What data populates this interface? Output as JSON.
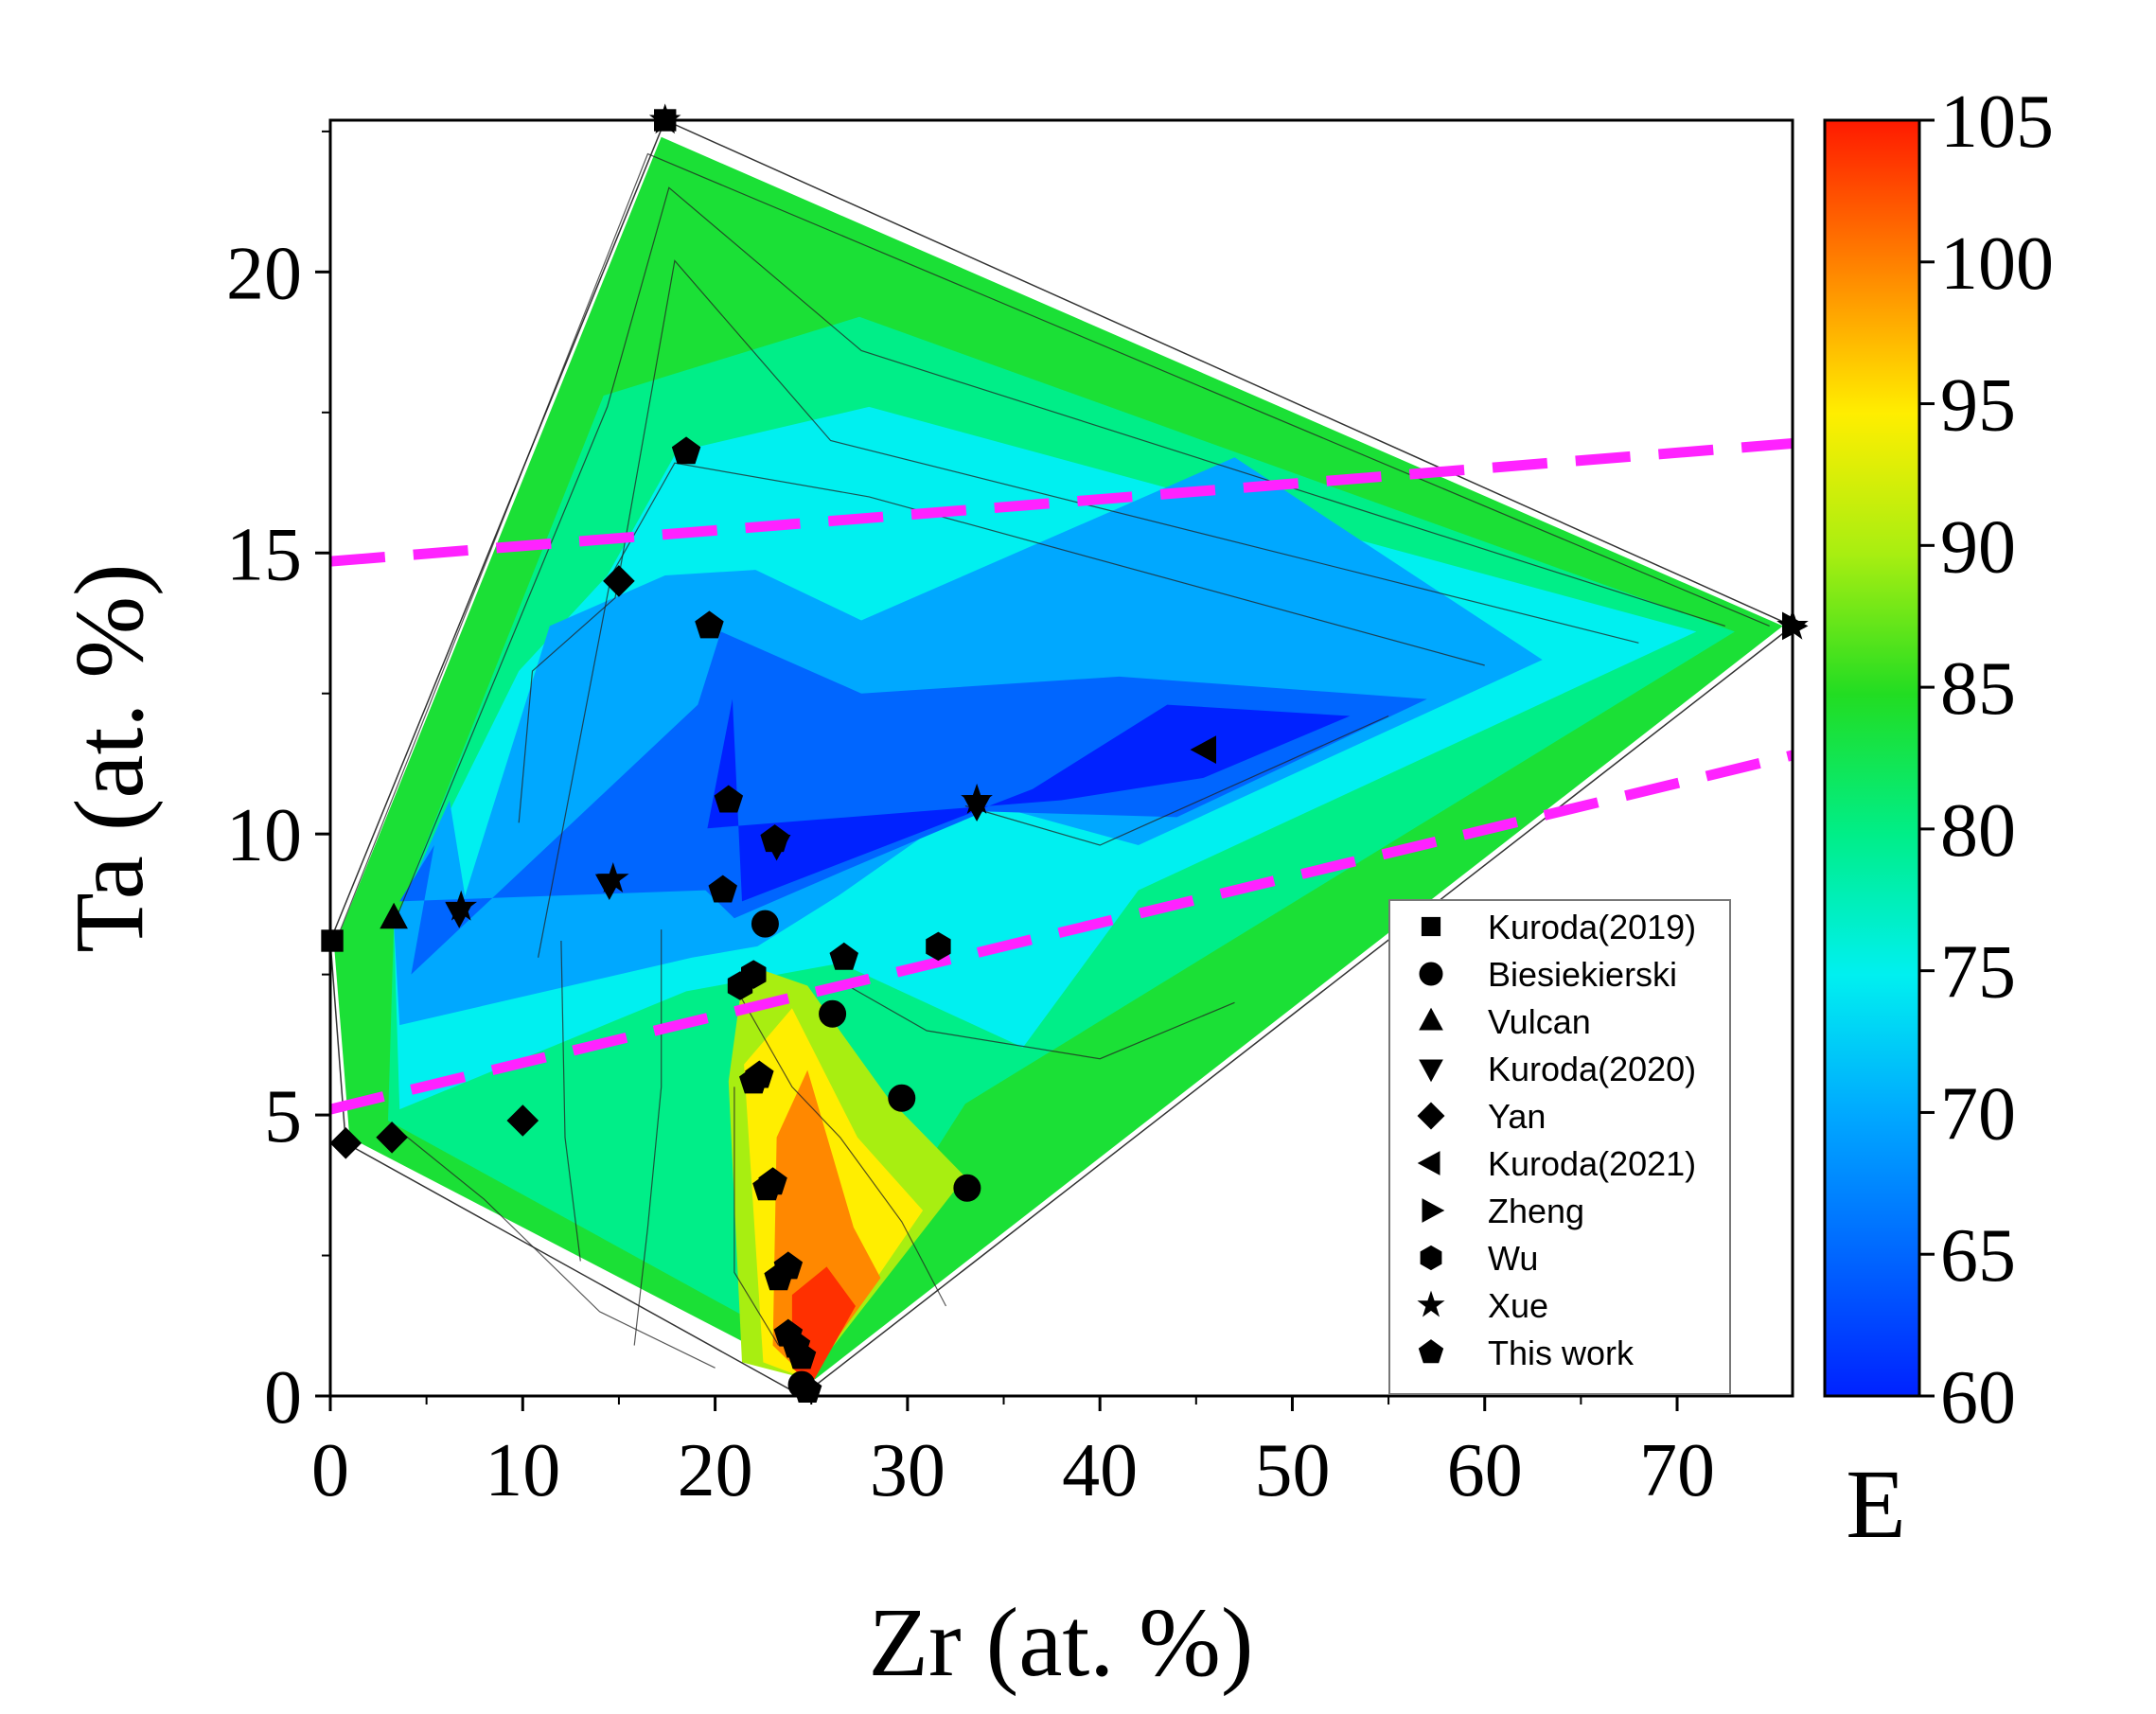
{
  "chart_data": {
    "type": "contour",
    "xlabel": "Zr (at. %)",
    "ylabel": "Ta (at. %)",
    "xlim": [
      0,
      76
    ],
    "ylim": [
      0,
      22.7
    ],
    "xticks": [
      "0",
      "10",
      "20",
      "30",
      "40",
      "50",
      "60",
      "70"
    ],
    "xtick_values": [
      0,
      10,
      20,
      30,
      40,
      50,
      60,
      70
    ],
    "yticks": [
      "0",
      "5",
      "10",
      "15",
      "20"
    ],
    "ytick_values": [
      0,
      5,
      10,
      15,
      20
    ],
    "colorbar": {
      "label": "E",
      "range": [
        60,
        105
      ],
      "ticks": [
        "60",
        "65",
        "70",
        "75",
        "80",
        "85",
        "90",
        "95",
        "100",
        "105"
      ],
      "tick_values": [
        60,
        65,
        70,
        75,
        80,
        85,
        90,
        95,
        100,
        105
      ],
      "colors": [
        "#0022ff",
        "#0066ff",
        "#00a8ff",
        "#00f0f0",
        "#00ee88",
        "#22dd22",
        "#a8ee11",
        "#ffee00",
        "#ff8800",
        "#ff1a00"
      ]
    },
    "region_hull": [
      [
        0,
        8.1
      ],
      [
        17.4,
        22.7
      ],
      [
        76,
        13.7
      ],
      [
        24.5,
        0
      ],
      [
        0.8,
        4.5
      ]
    ],
    "regions": [
      {
        "level": 84,
        "points": [
          [
            0.2,
            8.0
          ],
          [
            17.2,
            22.4
          ],
          [
            75.5,
            13.7
          ],
          [
            25.2,
            0.3
          ],
          [
            1.0,
            4.6
          ]
        ]
      },
      {
        "level": 80,
        "points": [
          [
            3.3,
            8.4
          ],
          [
            14.2,
            17.8
          ],
          [
            27.5,
            19.2
          ],
          [
            73,
            13.6
          ],
          [
            33,
            5.2
          ],
          [
            24.8,
            0.8
          ],
          [
            3.0,
            4.9
          ]
        ]
      },
      {
        "level": 75,
        "points": [
          [
            3.3,
            8.4
          ],
          [
            9.8,
            12.9
          ],
          [
            14.4,
            14.6
          ],
          [
            18.0,
            16.8
          ],
          [
            28.0,
            17.6
          ],
          [
            71,
            13.6
          ],
          [
            42,
            9.0
          ],
          [
            36,
            6.2
          ],
          [
            26.5,
            7.7
          ],
          [
            18.5,
            7.2
          ],
          [
            3.6,
            5.1
          ]
        ]
      },
      {
        "level": 70,
        "points": [
          [
            3.3,
            8.4
          ],
          [
            6.2,
            10.6
          ],
          [
            7.0,
            8.9
          ],
          [
            11.4,
            13.7
          ],
          [
            17.4,
            14.6
          ],
          [
            22.1,
            14.7
          ],
          [
            27.6,
            13.8
          ],
          [
            47.0,
            16.7
          ],
          [
            63.0,
            13.1
          ],
          [
            42.0,
            9.8
          ],
          [
            33.5,
            10.6
          ],
          [
            26.4,
            8.9
          ],
          [
            22.2,
            8.0
          ],
          [
            18.8,
            7.8
          ],
          [
            3.6,
            6.6
          ]
        ]
      },
      {
        "level": 65,
        "points": [
          [
            3.6,
            8.8
          ],
          [
            5.4,
            9.8
          ],
          [
            4.2,
            7.5
          ],
          [
            19.1,
            12.3
          ],
          [
            20.3,
            13.6
          ],
          [
            27.6,
            12.5
          ],
          [
            41.0,
            12.8
          ],
          [
            57.0,
            12.4
          ],
          [
            44.0,
            10.3
          ],
          [
            34.0,
            10.4
          ],
          [
            26.4,
            9.3
          ],
          [
            21.0,
            8.5
          ],
          [
            19.5,
            9.0
          ]
        ]
      },
      {
        "level": 60,
        "points": [
          [
            19.6,
            10.1
          ],
          [
            20.9,
            12.4
          ],
          [
            21.4,
            8.8
          ],
          [
            36.5,
            10.8
          ],
          [
            43.5,
            12.3
          ],
          [
            53.0,
            12.1
          ],
          [
            45.4,
            11.0
          ],
          [
            38.0,
            10.6
          ]
        ]
      },
      {
        "level": 90,
        "points": [
          [
            21.3,
            7.1
          ],
          [
            22.3,
            7.6
          ],
          [
            24.8,
            7.3
          ],
          [
            29.0,
            5.3
          ],
          [
            33.0,
            3.9
          ],
          [
            24.8,
            0.3
          ],
          [
            21.4,
            0.6
          ],
          [
            20.7,
            5.6
          ]
        ]
      },
      {
        "level": 95,
        "points": [
          [
            21.5,
            5.9
          ],
          [
            24.0,
            6.9
          ],
          [
            27.4,
            4.6
          ],
          [
            30.8,
            3.3
          ],
          [
            24.8,
            0.3
          ],
          [
            22.5,
            0.6
          ]
        ]
      },
      {
        "level": 100,
        "points": [
          [
            23.2,
            4.6
          ],
          [
            24.8,
            5.8
          ],
          [
            27.2,
            3.0
          ],
          [
            28.6,
            2.1
          ],
          [
            24.8,
            0.3
          ],
          [
            23.0,
            0.9
          ]
        ]
      },
      {
        "level": 104,
        "points": [
          [
            24.0,
            1.8
          ],
          [
            25.8,
            2.3
          ],
          [
            27.3,
            1.6
          ],
          [
            25.0,
            0.2
          ],
          [
            24.0,
            0.5
          ]
        ]
      }
    ],
    "contour_lines": [
      [
        [
          0.3,
          8.1
        ],
        [
          16.5,
          22.1
        ],
        [
          74.8,
          13.7
        ]
      ],
      [
        [
          3.3,
          8.4
        ],
        [
          14.4,
          17.6
        ],
        [
          17.6,
          21.5
        ],
        [
          27.6,
          18.6
        ],
        [
          72.5,
          13.7
        ]
      ],
      [
        [
          9.8,
          10.2
        ],
        [
          10.5,
          12.9
        ],
        [
          14.8,
          14.2
        ],
        [
          17.9,
          20.2
        ],
        [
          26.0,
          17.0
        ],
        [
          68,
          13.4
        ]
      ],
      [
        [
          10.8,
          7.8
        ],
        [
          14.6,
          14.6
        ],
        [
          17.9,
          16.6
        ],
        [
          28.0,
          16.0
        ],
        [
          60,
          13.0
        ]
      ],
      [
        [
          21.0,
          7.3
        ],
        [
          24.0,
          5.5
        ],
        [
          26.5,
          4.6
        ],
        [
          29.7,
          3.1
        ],
        [
          32.0,
          1.6
        ]
      ],
      [
        [
          17.2,
          8.3
        ],
        [
          17.2,
          5.5
        ],
        [
          16.5,
          3.0
        ],
        [
          15.8,
          0.9
        ]
      ],
      [
        [
          12.0,
          8.1
        ],
        [
          12.2,
          4.6
        ],
        [
          13.0,
          2.4
        ]
      ],
      [
        [
          21.0,
          5.5
        ],
        [
          21.0,
          2.2
        ],
        [
          23.3,
          0.9
        ]
      ],
      [
        [
          26.9,
          7.3
        ],
        [
          31.0,
          6.5
        ],
        [
          40.0,
          6.0
        ],
        [
          47.0,
          7.0
        ]
      ],
      [
        [
          3.3,
          4.8
        ],
        [
          8.0,
          3.5
        ],
        [
          14.0,
          1.5
        ],
        [
          20.0,
          0.5
        ]
      ],
      [
        [
          33.0,
          10.5
        ],
        [
          40.0,
          9.8
        ],
        [
          55.0,
          12.1
        ]
      ]
    ],
    "dashed_lines": [
      {
        "points": [
          [
            0,
            14.85
          ],
          [
            76,
            16.95
          ]
        ],
        "color": "#ff22ff"
      },
      {
        "points": [
          [
            0,
            5.1
          ],
          [
            76,
            11.4
          ]
        ],
        "color": "#ff22ff"
      }
    ],
    "legend": {
      "position": "lower-right",
      "entries": [
        {
          "label": "Kuroda(2019)",
          "marker": "square"
        },
        {
          "label": "Biesiekierski",
          "marker": "circle"
        },
        {
          "label": "Vulcan",
          "marker": "triangle-up"
        },
        {
          "label": "Kuroda(2020)",
          "marker": "triangle-down"
        },
        {
          "label": "Yan",
          "marker": "diamond"
        },
        {
          "label": "Kuroda(2021)",
          "marker": "triangle-left"
        },
        {
          "label": "Zheng",
          "marker": "triangle-right"
        },
        {
          "label": "Wu",
          "marker": "hexagon"
        },
        {
          "label": "Xue",
          "marker": "star"
        },
        {
          "label": "This work",
          "marker": "pentagon"
        }
      ]
    },
    "series": [
      {
        "name": "Kuroda(2019)",
        "marker": "square",
        "points": [
          [
            0.1,
            8.1
          ],
          [
            17.4,
            22.7
          ]
        ]
      },
      {
        "name": "Biesiekierski",
        "marker": "circle",
        "points": [
          [
            22.6,
            8.4
          ],
          [
            26.1,
            6.8
          ],
          [
            29.7,
            5.3
          ],
          [
            33.1,
            3.7
          ],
          [
            24.5,
            0.2
          ]
        ]
      },
      {
        "name": "Vulcan",
        "marker": "triangle-up",
        "points": [
          [
            3.3,
            8.5
          ]
        ]
      },
      {
        "name": "Kuroda(2020)",
        "marker": "triangle-down",
        "points": [
          [
            6.7,
            8.6
          ],
          [
            14.5,
            9.1
          ],
          [
            23.2,
            9.8
          ],
          [
            33.6,
            10.5
          ]
        ]
      },
      {
        "name": "Yan",
        "marker": "diamond",
        "points": [
          [
            0.8,
            4.5
          ],
          [
            3.2,
            4.6
          ],
          [
            10.0,
            4.9
          ],
          [
            15.0,
            14.5
          ]
        ]
      },
      {
        "name": "Kuroda(2021)",
        "marker": "triangle-left",
        "points": [
          [
            45.5,
            11.5
          ]
        ]
      },
      {
        "name": "Zheng",
        "marker": "triangle-right",
        "points": [
          [
            76.0,
            13.7
          ]
        ]
      },
      {
        "name": "Wu",
        "marker": "hexagon",
        "points": [
          [
            31.6,
            8.0
          ],
          [
            21.3,
            7.3
          ],
          [
            22.0,
            7.5
          ]
        ]
      },
      {
        "name": "Xue",
        "marker": "star",
        "points": [
          [
            17.4,
            22.7
          ],
          [
            14.7,
            9.2
          ],
          [
            6.8,
            8.7
          ],
          [
            33.6,
            10.6
          ],
          [
            76.0,
            13.7
          ]
        ]
      },
      {
        "name": "This work",
        "marker": "pentagon",
        "points": [
          [
            18.5,
            16.8
          ],
          [
            19.7,
            13.7
          ],
          [
            20.7,
            10.6
          ],
          [
            20.4,
            9.0
          ],
          [
            23.1,
            9.9
          ],
          [
            26.7,
            7.8
          ],
          [
            22.0,
            5.6
          ],
          [
            22.3,
            5.7
          ],
          [
            22.7,
            3.7
          ],
          [
            23.0,
            3.8
          ],
          [
            23.3,
            2.1
          ],
          [
            23.8,
            2.3
          ],
          [
            23.8,
            1.1
          ],
          [
            24.2,
            0.9
          ],
          [
            24.5,
            0.7
          ],
          [
            24.8,
            0.1
          ]
        ]
      }
    ]
  }
}
